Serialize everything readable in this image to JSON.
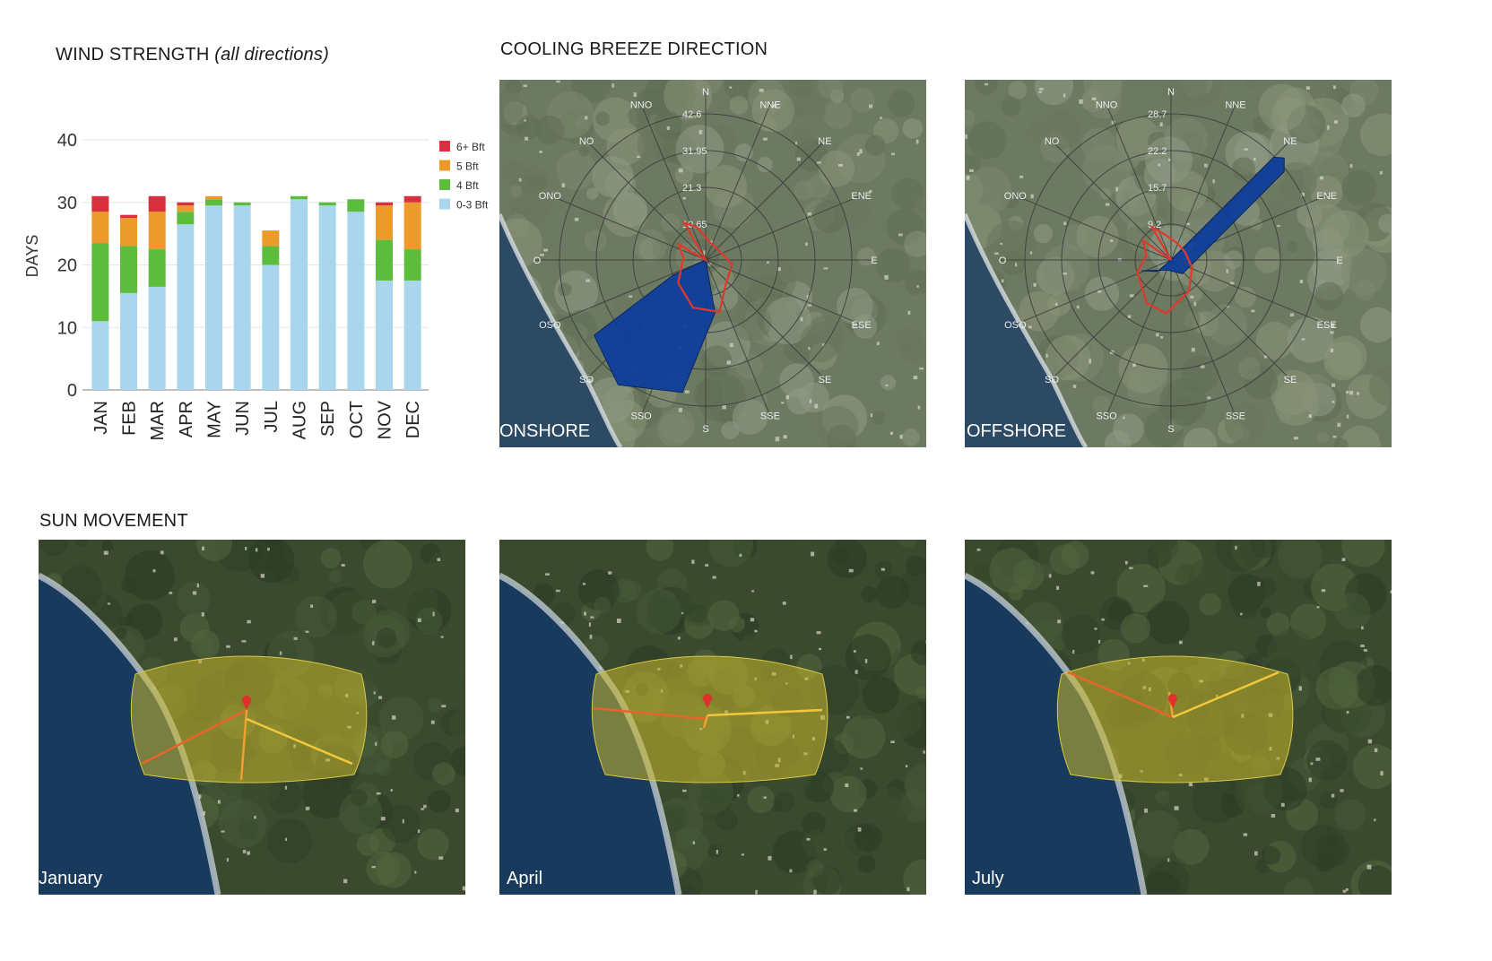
{
  "wind_strength": {
    "title_main": "WIND STRENGTH",
    "title_italic": "(all directions)"
  },
  "cooling_breeze": {
    "title": "COOLING BREEZE DIRECTION",
    "onshore": {
      "caption": "ONSHORE",
      "ring_labels": [
        "10.65",
        "21.3",
        "31.95",
        "42.6"
      ]
    },
    "offshore": {
      "caption": "OFFSHORE",
      "ring_labels": [
        "9.2",
        "15.7",
        "22.2",
        "28.7"
      ]
    },
    "directions": [
      "N",
      "NNE",
      "NE",
      "ENE",
      "E",
      "ESE",
      "SE",
      "SSE",
      "S",
      "SSO",
      "SO",
      "OSO",
      "O",
      "ONO",
      "NO",
      "NNO"
    ]
  },
  "sun_movement": {
    "title": "SUN MOVEMENT",
    "months": [
      "January",
      "April",
      "July"
    ]
  },
  "colors": {
    "bft_6plus": "#d8303c",
    "bft_5": "#ec9a2c",
    "bft_4": "#5cbc3c",
    "bft_0_3": "#a9d6ec",
    "wind_rose_fill": "#0c3c9c",
    "wind_rose_outline": "#e0382c",
    "sun_area": "#c8b82c"
  },
  "chart_data": {
    "type": "bar",
    "stacked": true,
    "categories": [
      "JAN",
      "FEB",
      "MAR",
      "APR",
      "MAY",
      "JUN",
      "JUL",
      "AUG",
      "SEP",
      "OCT",
      "NOV",
      "DEC"
    ],
    "series": [
      {
        "name": "0-3 Bft",
        "color": "#a9d6ec",
        "values": [
          11,
          15.5,
          16.5,
          26.5,
          29.5,
          29.5,
          20,
          30.5,
          29.5,
          28.5,
          17.5,
          17.5
        ]
      },
      {
        "name": "4 Bft",
        "color": "#5cbc3c",
        "values": [
          12.5,
          7.5,
          6,
          2,
          1,
          0.5,
          3,
          0.5,
          0.5,
          2,
          6.5,
          5
        ]
      },
      {
        "name": "5 Bft",
        "color": "#ec9a2c",
        "values": [
          5,
          4.5,
          6,
          1,
          0.5,
          0,
          2.5,
          0,
          0,
          0,
          5.5,
          7.5
        ]
      },
      {
        "name": "6+ Bft",
        "color": "#d8303c",
        "values": [
          2.5,
          0.5,
          2.5,
          0.5,
          0,
          0,
          0,
          0,
          0,
          0,
          0.5,
          1
        ]
      }
    ],
    "ylabel": "DAYS",
    "xlabel": "",
    "ylim": [
      0,
      40
    ],
    "yticks": [
      0,
      10,
      20,
      30,
      40
    ],
    "legend_order": [
      "6+ Bft",
      "5 Bft",
      "4 Bft",
      "0-3 Bft"
    ],
    "legend_position": "right",
    "grid": true
  }
}
